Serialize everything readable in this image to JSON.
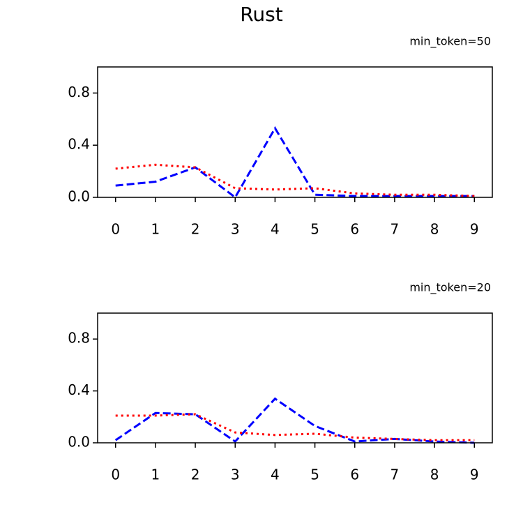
{
  "title": "Rust",
  "chart_data": [
    {
      "type": "line",
      "subtitle": "min_token=50",
      "x": [
        0,
        1,
        2,
        3,
        4,
        5,
        6,
        7,
        8,
        9
      ],
      "series": [
        {
          "color": "#0000ff",
          "linestyle": "dashed",
          "values": [
            0.09,
            0.12,
            0.23,
            0.0,
            0.53,
            0.02,
            0.01,
            0.01,
            0.01,
            0.01
          ]
        },
        {
          "color": "#ff0000",
          "linestyle": "dotted",
          "values": [
            0.22,
            0.25,
            0.23,
            0.07,
            0.06,
            0.07,
            0.03,
            0.02,
            0.02,
            0.01
          ]
        }
      ],
      "xlim": [
        -0.45,
        9.45
      ],
      "xticks": [
        0,
        1,
        2,
        3,
        4,
        5,
        6,
        7,
        8,
        9
      ],
      "ylim": [
        0,
        1
      ],
      "yticks": [
        {
          "value": 0,
          "label": "0.0"
        },
        {
          "value": 0.4,
          "label": "0.4"
        },
        {
          "value": 0.8,
          "label": "0.8"
        }
      ]
    },
    {
      "type": "line",
      "subtitle": "min_token=20",
      "x": [
        0,
        1,
        2,
        3,
        4,
        5,
        6,
        7,
        8,
        9
      ],
      "series": [
        {
          "color": "#0000ff",
          "linestyle": "dashed",
          "values": [
            0.02,
            0.23,
            0.22,
            0.01,
            0.34,
            0.13,
            0.01,
            0.03,
            0.01,
            0.0
          ]
        },
        {
          "color": "#ff0000",
          "linestyle": "dotted",
          "values": [
            0.21,
            0.21,
            0.22,
            0.08,
            0.06,
            0.07,
            0.04,
            0.03,
            0.02,
            0.02
          ]
        }
      ],
      "xlim": [
        -0.45,
        9.45
      ],
      "xticks": [
        0,
        1,
        2,
        3,
        4,
        5,
        6,
        7,
        8,
        9
      ],
      "ylim": [
        0,
        1
      ],
      "yticks": [
        {
          "value": 0,
          "label": "0.0"
        },
        {
          "value": 0.4,
          "label": "0.4"
        },
        {
          "value": 0.8,
          "label": "0.8"
        }
      ]
    }
  ]
}
